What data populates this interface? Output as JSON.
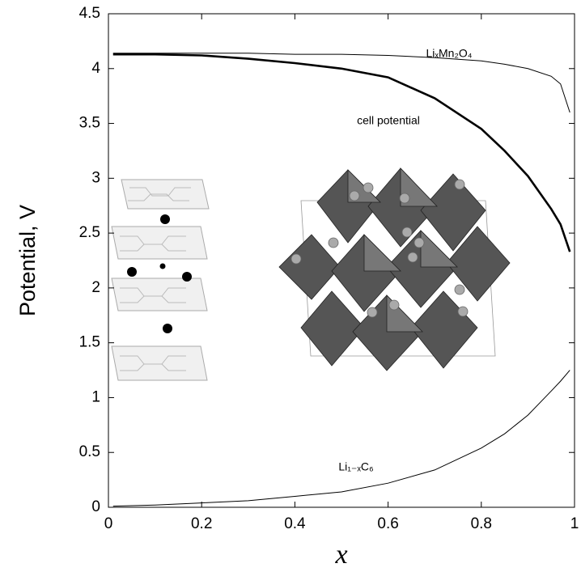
{
  "chart_data": {
    "type": "line",
    "x_label": "x",
    "y_label": "Potential, V",
    "x": [
      0.01,
      0.1,
      0.2,
      0.3,
      0.4,
      0.5,
      0.6,
      0.7,
      0.8,
      0.85,
      0.9,
      0.95,
      0.97,
      0.99
    ],
    "series": [
      {
        "color": "#000000",
        "values": [
          4.14,
          4.14,
          4.14,
          4.14,
          4.13,
          4.13,
          4.12,
          4.1,
          4.07,
          4.04,
          4.0,
          3.93,
          3.86,
          3.6
        ]
      },
      {
        "color": "#000000",
        "values": [
          4.13,
          4.13,
          4.12,
          4.09,
          4.05,
          4.0,
          3.92,
          3.73,
          3.45,
          3.25,
          3.02,
          2.72,
          2.58,
          2.33
        ]
      },
      {
        "color": "#000000",
        "values": [
          0.01,
          0.02,
          0.04,
          0.06,
          0.1,
          0.14,
          0.22,
          0.34,
          0.54,
          0.67,
          0.84,
          1.06,
          1.15,
          1.25
        ]
      }
    ],
    "annotations": [
      "LiₓMn₂O₄",
      "cell potential",
      "Li₁₋ₓC₆"
    ],
    "xlim": [
      0,
      1
    ],
    "ylim": [
      0,
      4.5
    ],
    "xticks": [
      0,
      0.2,
      0.4,
      0.6,
      0.8,
      1
    ],
    "yticks": [
      0,
      0.5,
      1,
      1.5,
      2,
      2.5,
      3,
      3.5,
      4,
      4.5
    ],
    "grid": false
  }
}
